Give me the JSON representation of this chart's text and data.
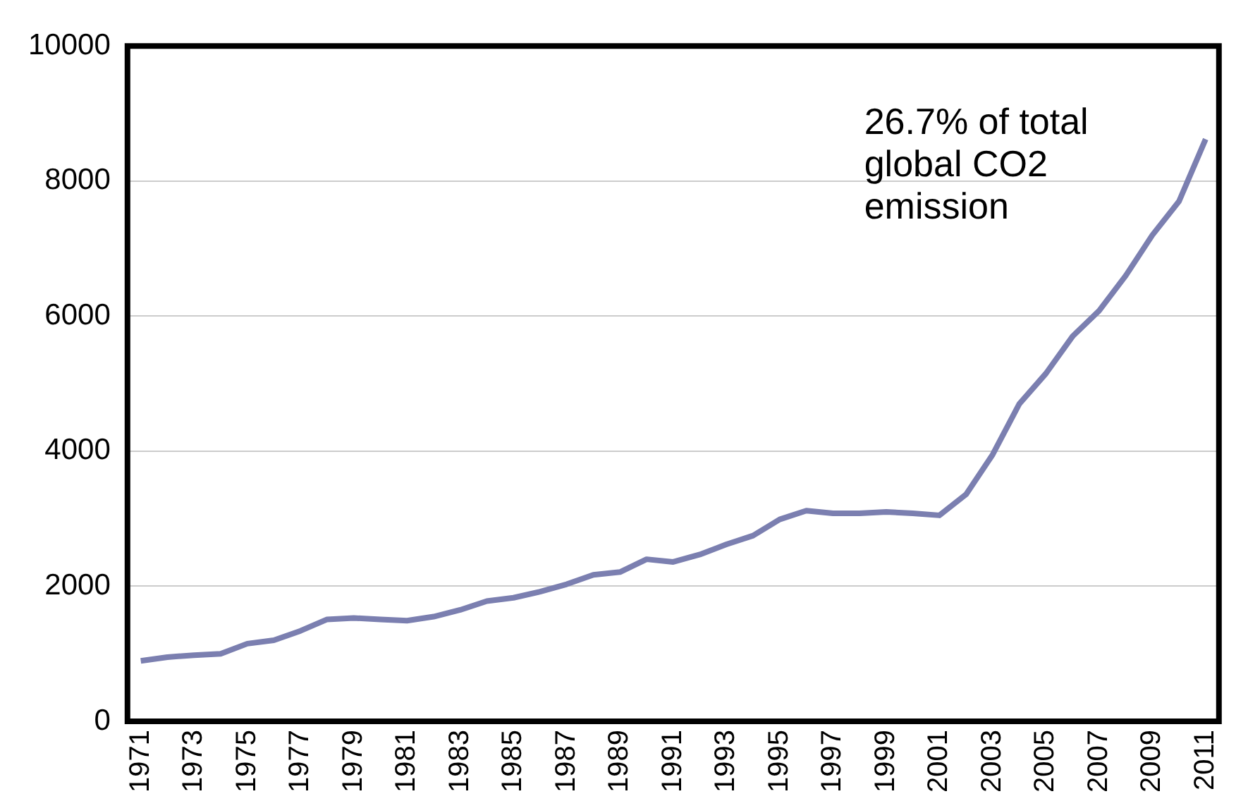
{
  "chart_data": {
    "type": "line",
    "categories": [
      "1971",
      null,
      "1973",
      null,
      "1975",
      null,
      "1977",
      null,
      "1979",
      null,
      "1981",
      null,
      "1983",
      null,
      "1985",
      null,
      "1987",
      null,
      "1989",
      null,
      "1991",
      null,
      "1993",
      null,
      "1995",
      null,
      "1997",
      null,
      "1999",
      null,
      "2001",
      null,
      "2003",
      null,
      "2005",
      null,
      "2007",
      null,
      "2009",
      null,
      "2011"
    ],
    "series": [
      {
        "color": "#7b7fb0",
        "values": [
          895,
          950,
          980,
          1000,
          1150,
          1200,
          1340,
          1510,
          1530,
          1510,
          1490,
          1550,
          1650,
          1780,
          1830,
          1920,
          2030,
          2170,
          2210,
          2400,
          2360,
          2470,
          2620,
          2750,
          2990,
          3120,
          3080,
          3080,
          3100,
          3080,
          3050,
          3360,
          3950,
          4700,
          5150,
          5700,
          6080,
          6600,
          7200,
          7700,
          8620
        ]
      }
    ],
    "ylim": [
      0,
      10000
    ],
    "yticks": [
      0,
      2000,
      4000,
      6000,
      8000,
      10000
    ],
    "grid": "y",
    "legend": false,
    "marker": "none",
    "line_style": "solid",
    "annotations": [
      "26.7% of total\nglobal CO2\nemission"
    ]
  }
}
